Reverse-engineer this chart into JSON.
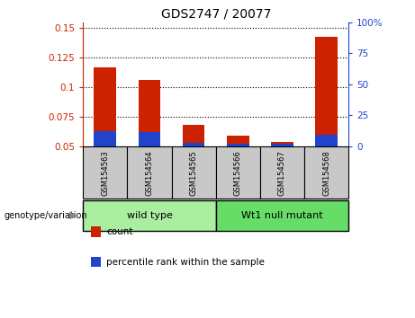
{
  "title": "GDS2747 / 20077",
  "samples": [
    "GSM154563",
    "GSM154564",
    "GSM154565",
    "GSM154566",
    "GSM154567",
    "GSM154568"
  ],
  "red_values": [
    0.117,
    0.106,
    0.068,
    0.059,
    0.054,
    0.143
  ],
  "blue_values": [
    0.063,
    0.062,
    0.053,
    0.052,
    0.052,
    0.06
  ],
  "ylim_left": [
    0.05,
    0.155
  ],
  "ylim_right": [
    0,
    100
  ],
  "yticks_left": [
    0.05,
    0.075,
    0.1,
    0.125,
    0.15
  ],
  "yticks_right": [
    0,
    25,
    50,
    75,
    100
  ],
  "ytick_labels_left": [
    "0.05",
    "0.075",
    "0.1",
    "0.125",
    "0.15"
  ],
  "ytick_labels_right": [
    "0",
    "25",
    "50",
    "75",
    "100%"
  ],
  "groups": [
    {
      "label": "wild type",
      "indices": [
        0,
        1,
        2
      ],
      "color": "#aaeea0"
    },
    {
      "label": "Wt1 null mutant",
      "indices": [
        3,
        4,
        5
      ],
      "color": "#66dd66"
    }
  ],
  "group_label_prefix": "genotype/variation",
  "legend_count_label": "count",
  "legend_percentile_label": "percentile rank within the sample",
  "red_color": "#cc2200",
  "blue_color": "#2244cc",
  "bg_color_samples": "#c8c8c8",
  "bar_width": 0.5,
  "grid_color": "black",
  "title_fontsize": 10
}
